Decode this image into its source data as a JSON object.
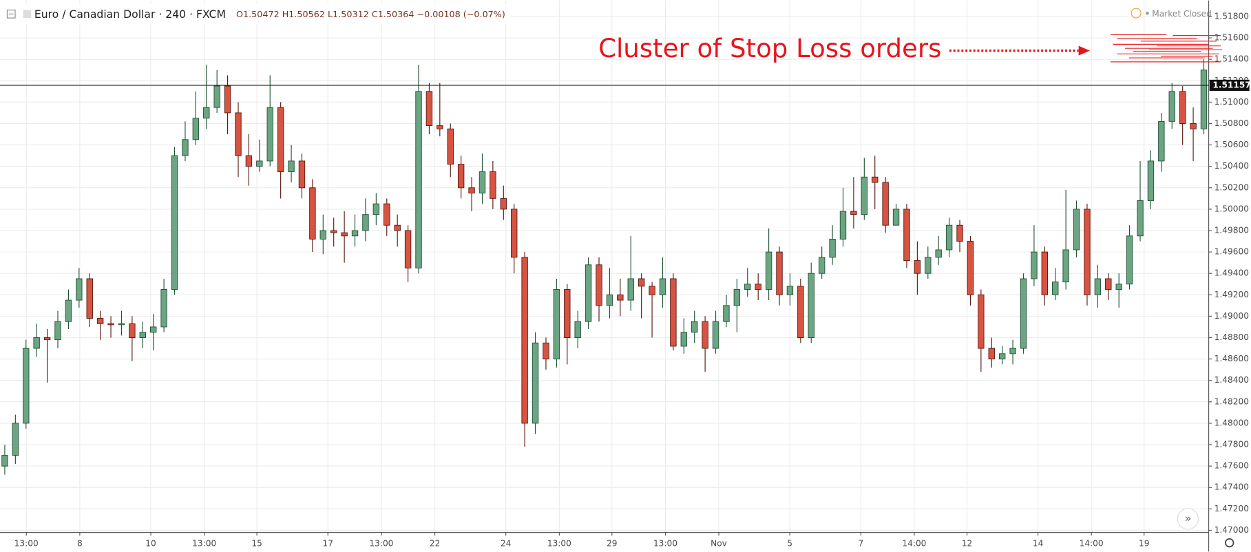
{
  "chart_data": {
    "type": "candlestick",
    "title": "Euro / Canadian Dollar · 240 · FXCM",
    "subtitle": "O1.50472 H1.50562 L1.50312 C1.50364 −0.00108 (−0.07%)",
    "status": "Market Closed",
    "annotation": "Cluster of Stop Loss orders",
    "last_price": 1.51157,
    "up_color": "#6ba583",
    "down_color": "#d75442",
    "grid": true,
    "ylim": [
      1.4698,
      1.5195
    ],
    "yticks": [
      {
        "value": 1.47,
        "label": "1.47000"
      },
      {
        "value": 1.472,
        "label": "1.47200"
      },
      {
        "value": 1.474,
        "label": "1.47400"
      },
      {
        "value": 1.476,
        "label": "1.47600"
      },
      {
        "value": 1.478,
        "label": "1.47800"
      },
      {
        "value": 1.48,
        "label": "1.48000"
      },
      {
        "value": 1.482,
        "label": "1.48200"
      },
      {
        "value": 1.484,
        "label": "1.48400"
      },
      {
        "value": 1.486,
        "label": "1.48600"
      },
      {
        "value": 1.488,
        "label": "1.48800"
      },
      {
        "value": 1.49,
        "label": "1.49000"
      },
      {
        "value": 1.492,
        "label": "1.49200"
      },
      {
        "value": 1.494,
        "label": "1.49400"
      },
      {
        "value": 1.496,
        "label": "1.49600"
      },
      {
        "value": 1.498,
        "label": "1.49800"
      },
      {
        "value": 1.5,
        "label": "1.50000"
      },
      {
        "value": 1.502,
        "label": "1.50200"
      },
      {
        "value": 1.504,
        "label": "1.50400"
      },
      {
        "value": 1.506,
        "label": "1.50600"
      },
      {
        "value": 1.508,
        "label": "1.50800"
      },
      {
        "value": 1.51,
        "label": "1.51000"
      },
      {
        "value": 1.512,
        "label": "1.51200"
      },
      {
        "value": 1.514,
        "label": "1.51400"
      },
      {
        "value": 1.516,
        "label": "1.51600"
      },
      {
        "value": 1.518,
        "label": "1.51800"
      }
    ],
    "xlim": [
      -0.45,
      113.46
    ],
    "xticks": [
      {
        "value": 2.03,
        "label": "13:00"
      },
      {
        "value": 7.07,
        "label": "8"
      },
      {
        "value": 13.76,
        "label": "10"
      },
      {
        "value": 18.8,
        "label": "13:00"
      },
      {
        "value": 23.76,
        "label": "15"
      },
      {
        "value": 30.45,
        "label": "17"
      },
      {
        "value": 35.49,
        "label": "13:00"
      },
      {
        "value": 40.53,
        "label": "22"
      },
      {
        "value": 47.22,
        "label": "24"
      },
      {
        "value": 52.26,
        "label": "13:00"
      },
      {
        "value": 57.22,
        "label": "29"
      },
      {
        "value": 62.26,
        "label": "13:00"
      },
      {
        "value": 67.29,
        "label": "Nov"
      },
      {
        "value": 73.98,
        "label": "5"
      },
      {
        "value": 80.68,
        "label": "7"
      },
      {
        "value": 85.71,
        "label": "14:00"
      },
      {
        "value": 90.68,
        "label": "12"
      },
      {
        "value": 97.37,
        "label": "14"
      },
      {
        "value": 102.4,
        "label": "14:00"
      },
      {
        "value": 107.37,
        "label": "19"
      }
    ],
    "ohlc": [
      [
        1.476,
        1.478,
        1.4752,
        1.477
      ],
      [
        1.477,
        1.4808,
        1.4762,
        1.48
      ],
      [
        1.48,
        1.4878,
        1.4795,
        1.487
      ],
      [
        1.487,
        1.4893,
        1.4862,
        1.488
      ],
      [
        1.488,
        1.4888,
        1.4838,
        1.4878
      ],
      [
        1.4878,
        1.4905,
        1.487,
        1.4895
      ],
      [
        1.4895,
        1.4925,
        1.4888,
        1.4915
      ],
      [
        1.4915,
        1.4945,
        1.4908,
        1.4935
      ],
      [
        1.4935,
        1.494,
        1.489,
        1.4898
      ],
      [
        1.4898,
        1.4905,
        1.4878,
        1.4893
      ],
      [
        1.4893,
        1.49,
        1.488,
        1.4892
      ],
      [
        1.4892,
        1.4905,
        1.4882,
        1.4893
      ],
      [
        1.4893,
        1.49,
        1.4858,
        1.488
      ],
      [
        1.488,
        1.4895,
        1.487,
        1.4885
      ],
      [
        1.4885,
        1.4902,
        1.4868,
        1.489
      ],
      [
        1.489,
        1.4935,
        1.4885,
        1.4925
      ],
      [
        1.4925,
        1.5058,
        1.492,
        1.505
      ],
      [
        1.505,
        1.5082,
        1.5045,
        1.5065
      ],
      [
        1.5065,
        1.511,
        1.506,
        1.5085
      ],
      [
        1.5085,
        1.5135,
        1.5075,
        1.5095
      ],
      [
        1.5095,
        1.513,
        1.509,
        1.5115
      ],
      [
        1.5115,
        1.5125,
        1.507,
        1.509
      ],
      [
        1.509,
        1.51,
        1.503,
        1.505
      ],
      [
        1.505,
        1.507,
        1.5022,
        1.504
      ],
      [
        1.504,
        1.5065,
        1.5035,
        1.5045
      ],
      [
        1.5045,
        1.5125,
        1.504,
        1.5095
      ],
      [
        1.5095,
        1.51,
        1.501,
        1.5035
      ],
      [
        1.5035,
        1.506,
        1.5025,
        1.5045
      ],
      [
        1.5045,
        1.5052,
        1.501,
        1.502
      ],
      [
        1.502,
        1.5028,
        1.496,
        1.4972
      ],
      [
        1.4972,
        1.4995,
        1.4958,
        1.498
      ],
      [
        1.498,
        1.4992,
        1.4965,
        1.4978
      ],
      [
        1.4978,
        1.4998,
        1.495,
        1.4975
      ],
      [
        1.4975,
        1.4995,
        1.4965,
        1.498
      ],
      [
        1.498,
        1.501,
        1.497,
        1.4995
      ],
      [
        1.4995,
        1.5015,
        1.4985,
        1.5005
      ],
      [
        1.5005,
        1.501,
        1.4975,
        1.4985
      ],
      [
        1.4985,
        1.4995,
        1.4965,
        1.498
      ],
      [
        1.498,
        1.4985,
        1.4932,
        1.4945
      ],
      [
        1.4945,
        1.5135,
        1.494,
        1.511
      ],
      [
        1.511,
        1.5118,
        1.507,
        1.5078
      ],
      [
        1.5078,
        1.5118,
        1.5068,
        1.5075
      ],
      [
        1.5075,
        1.508,
        1.503,
        1.5042
      ],
      [
        1.5042,
        1.505,
        1.501,
        1.502
      ],
      [
        1.502,
        1.503,
        1.4998,
        1.5015
      ],
      [
        1.5015,
        1.5052,
        1.5005,
        1.5035
      ],
      [
        1.5035,
        1.5045,
        1.5,
        1.501
      ],
      [
        1.501,
        1.5022,
        1.499,
        1.5
      ],
      [
        1.5,
        1.5005,
        1.494,
        1.4955
      ],
      [
        1.4955,
        1.496,
        1.4778,
        1.48
      ],
      [
        1.48,
        1.4885,
        1.479,
        1.4875
      ],
      [
        1.4875,
        1.488,
        1.485,
        1.486
      ],
      [
        1.486,
        1.4935,
        1.4852,
        1.4925
      ],
      [
        1.4925,
        1.493,
        1.4855,
        1.488
      ],
      [
        1.488,
        1.4905,
        1.487,
        1.4895
      ],
      [
        1.4895,
        1.4955,
        1.4888,
        1.4948
      ],
      [
        1.4948,
        1.4955,
        1.4895,
        1.491
      ],
      [
        1.491,
        1.4945,
        1.4898,
        1.492
      ],
      [
        1.492,
        1.4935,
        1.49,
        1.4915
      ],
      [
        1.4915,
        1.4975,
        1.4905,
        1.4935
      ],
      [
        1.4935,
        1.494,
        1.4898,
        1.4928
      ],
      [
        1.4928,
        1.4932,
        1.488,
        1.492
      ],
      [
        1.492,
        1.4955,
        1.4908,
        1.4935
      ],
      [
        1.4935,
        1.494,
        1.4868,
        1.4872
      ],
      [
        1.4872,
        1.4898,
        1.4865,
        1.4885
      ],
      [
        1.4885,
        1.4905,
        1.4875,
        1.4895
      ],
      [
        1.4895,
        1.49,
        1.4848,
        1.487
      ],
      [
        1.487,
        1.4905,
        1.4865,
        1.4895
      ],
      [
        1.4895,
        1.492,
        1.489,
        1.491
      ],
      [
        1.491,
        1.4935,
        1.4885,
        1.4925
      ],
      [
        1.4925,
        1.4945,
        1.4918,
        1.493
      ],
      [
        1.493,
        1.494,
        1.4915,
        1.4925
      ],
      [
        1.4925,
        1.4982,
        1.4915,
        1.496
      ],
      [
        1.496,
        1.4965,
        1.491,
        1.492
      ],
      [
        1.492,
        1.494,
        1.491,
        1.4928
      ],
      [
        1.4928,
        1.4935,
        1.4875,
        1.488
      ],
      [
        1.488,
        1.495,
        1.4875,
        1.494
      ],
      [
        1.494,
        1.4965,
        1.4935,
        1.4955
      ],
      [
        1.4955,
        1.4985,
        1.4948,
        1.4972
      ],
      [
        1.4972,
        1.502,
        1.4965,
        1.4998
      ],
      [
        1.4998,
        1.503,
        1.4982,
        1.4995
      ],
      [
        1.4995,
        1.5048,
        1.499,
        1.503
      ],
      [
        1.503,
        1.505,
        1.5,
        1.5025
      ],
      [
        1.5025,
        1.503,
        1.4978,
        1.4985
      ],
      [
        1.4985,
        1.5005,
        1.4985,
        1.5
      ],
      [
        1.5,
        1.5005,
        1.4945,
        1.4952
      ],
      [
        1.4952,
        1.497,
        1.492,
        1.494
      ],
      [
        1.494,
        1.4965,
        1.4935,
        1.4955
      ],
      [
        1.4955,
        1.4975,
        1.4948,
        1.4962
      ],
      [
        1.4962,
        1.4992,
        1.4955,
        1.4985
      ],
      [
        1.4985,
        1.499,
        1.496,
        1.497
      ],
      [
        1.497,
        1.4975,
        1.491,
        1.492
      ],
      [
        1.492,
        1.4925,
        1.4848,
        1.487
      ],
      [
        1.487,
        1.488,
        1.4852,
        1.486
      ],
      [
        1.486,
        1.4872,
        1.4855,
        1.4865
      ],
      [
        1.4865,
        1.4878,
        1.4855,
        1.487
      ],
      [
        1.487,
        1.494,
        1.4865,
        1.4935
      ],
      [
        1.4935,
        1.4985,
        1.4928,
        1.496
      ],
      [
        1.496,
        1.4965,
        1.491,
        1.492
      ],
      [
        1.492,
        1.4945,
        1.4915,
        1.4932
      ],
      [
        1.4932,
        1.5018,
        1.4925,
        1.4962
      ],
      [
        1.4962,
        1.5008,
        1.4955,
        1.5
      ],
      [
        1.5,
        1.5005,
        1.491,
        1.492
      ],
      [
        1.492,
        1.4948,
        1.4908,
        1.4935
      ],
      [
        1.4935,
        1.494,
        1.4915,
        1.4925
      ],
      [
        1.4925,
        1.494,
        1.4908,
        1.493
      ],
      [
        1.493,
        1.4985,
        1.4925,
        1.4975
      ],
      [
        1.4975,
        1.5045,
        1.497,
        1.5008
      ],
      [
        1.5008,
        1.5055,
        1.5,
        1.5045
      ],
      [
        1.5045,
        1.509,
        1.5035,
        1.5082
      ],
      [
        1.5082,
        1.5118,
        1.5075,
        1.511
      ],
      [
        1.511,
        1.5115,
        1.506,
        1.508
      ],
      [
        1.508,
        1.5095,
        1.5045,
        1.5075
      ],
      [
        1.5075,
        1.514,
        1.507,
        1.513
      ]
    ]
  }
}
